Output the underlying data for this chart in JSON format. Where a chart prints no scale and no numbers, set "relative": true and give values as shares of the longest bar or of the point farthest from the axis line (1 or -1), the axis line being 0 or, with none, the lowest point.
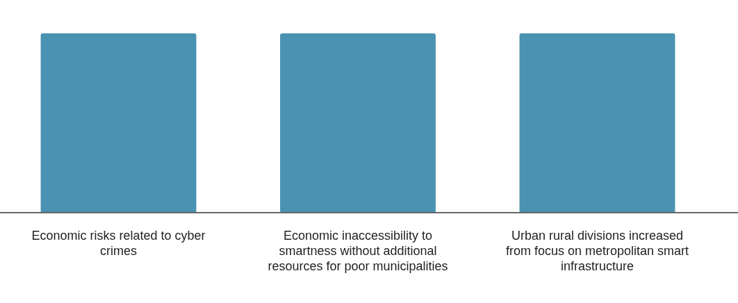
{
  "chart_data": {
    "type": "bar",
    "relative": true,
    "categories": [
      "Economic risks related to cyber crimes",
      "Economic inaccessibility to smartness without additional resources for poor municipalities",
      "Urban rural divisions increased from focus on metropolitan smart infrastructure"
    ],
    "values": [
      1,
      1,
      1
    ],
    "color": "#4a92b2"
  }
}
